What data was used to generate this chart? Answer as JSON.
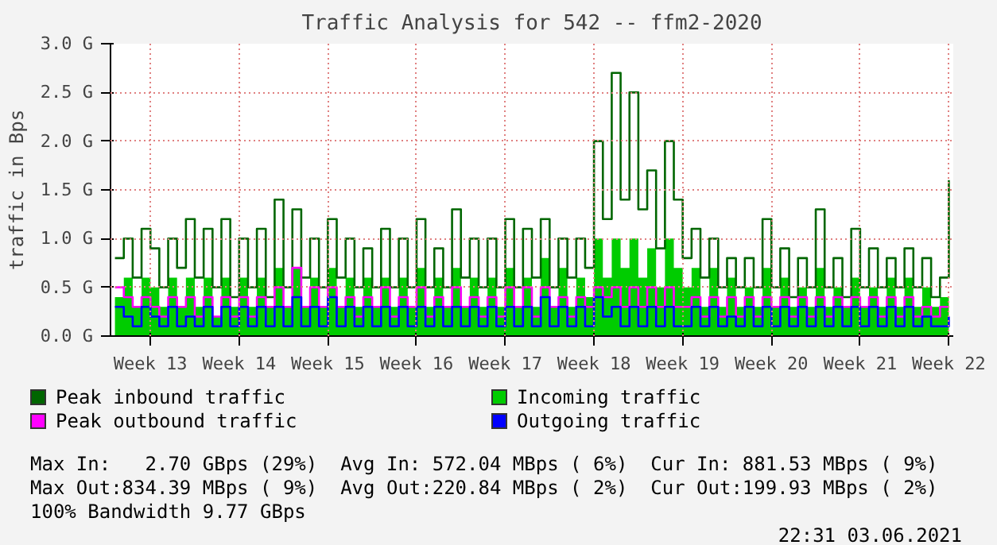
{
  "chart_data": {
    "type": "step",
    "title": "Traffic Analysis for 542 -- ffm2-2020",
    "ylabel": "traffic in Bps",
    "categories": [
      null,
      null,
      null,
      null,
      "Week 13",
      null,
      null,
      null,
      null,
      null,
      null,
      null,
      null,
      null,
      "Week 14",
      null,
      null,
      null,
      null,
      null,
      null,
      null,
      null,
      null,
      "Week 15",
      null,
      null,
      null,
      null,
      null,
      null,
      null,
      null,
      null,
      "Week 16",
      null,
      null,
      null,
      null,
      null,
      null,
      null,
      null,
      null,
      "Week 17",
      null,
      null,
      null,
      null,
      null,
      null,
      null,
      null,
      null,
      "Week 18",
      null,
      null,
      null,
      null,
      null,
      null,
      null,
      null,
      null,
      "Week 19",
      null,
      null,
      null,
      null,
      null,
      null,
      null,
      null,
      null,
      "Week 20",
      null,
      null,
      null,
      null,
      null,
      null,
      null,
      null,
      null,
      "Week 21",
      null,
      null,
      null,
      null,
      null,
      null,
      null,
      null,
      null,
      "Week 22"
    ],
    "series": [
      {
        "name": "Peak inbound traffic",
        "color": "#006600",
        "values": [
          0.8,
          1.0,
          0.6,
          1.1,
          0.9,
          0.5,
          1.0,
          0.7,
          1.2,
          0.6,
          1.1,
          0.5,
          1.2,
          0.4,
          1.0,
          0.5,
          1.1,
          0.4,
          1.4,
          0.5,
          1.3,
          0.6,
          1.0,
          0.5,
          1.2,
          0.6,
          1.0,
          0.5,
          0.9,
          0.5,
          1.1,
          0.5,
          1.0,
          0.5,
          1.2,
          0.5,
          0.9,
          0.5,
          1.3,
          0.6,
          1.0,
          0.5,
          1.0,
          0.5,
          1.2,
          0.5,
          1.1,
          0.6,
          1.2,
          0.5,
          1.0,
          0.6,
          1.0,
          0.7,
          2.0,
          1.2,
          2.7,
          1.4,
          2.5,
          1.3,
          1.7,
          0.9,
          2.0,
          1.4,
          0.8,
          1.1,
          0.6,
          1.0,
          0.5,
          0.8,
          0.5,
          0.8,
          0.5,
          1.2,
          0.5,
          0.9,
          0.4,
          0.8,
          0.5,
          1.3,
          0.5,
          0.8,
          0.4,
          1.1,
          0.5,
          0.9,
          0.5,
          0.8,
          0.5,
          0.9,
          0.5,
          0.8,
          0.4,
          0.6,
          1.6
        ]
      },
      {
        "name": "Incoming traffic",
        "type": "area",
        "color": "#00cc00",
        "values": [
          0.4,
          0.6,
          0.3,
          0.6,
          0.5,
          0.3,
          0.6,
          0.3,
          0.6,
          0.3,
          0.6,
          0.2,
          0.6,
          0.3,
          0.6,
          0.3,
          0.6,
          0.3,
          0.7,
          0.3,
          0.7,
          0.3,
          0.6,
          0.3,
          0.7,
          0.3,
          0.6,
          0.3,
          0.6,
          0.3,
          0.6,
          0.3,
          0.6,
          0.3,
          0.7,
          0.3,
          0.6,
          0.3,
          0.7,
          0.3,
          0.6,
          0.3,
          0.6,
          0.3,
          0.7,
          0.3,
          0.6,
          0.3,
          0.8,
          0.3,
          0.7,
          0.3,
          0.6,
          0.4,
          1.0,
          0.6,
          1.0,
          0.7,
          1.0,
          0.6,
          0.9,
          0.5,
          1.0,
          0.7,
          0.5,
          0.7,
          0.3,
          0.7,
          0.3,
          0.6,
          0.3,
          0.5,
          0.3,
          0.7,
          0.3,
          0.6,
          0.3,
          0.5,
          0.3,
          0.7,
          0.3,
          0.5,
          0.3,
          0.6,
          0.3,
          0.5,
          0.3,
          0.6,
          0.3,
          0.6,
          0.3,
          0.5,
          0.3,
          0.4,
          0.6
        ]
      },
      {
        "name": "Peak outbound traffic",
        "color": "#ff00ff",
        "values": [
          0.5,
          0.4,
          0.3,
          0.4,
          0.3,
          0.2,
          0.4,
          0.3,
          0.4,
          0.2,
          0.4,
          0.2,
          0.4,
          0.2,
          0.4,
          0.2,
          0.4,
          0.3,
          0.5,
          0.3,
          0.7,
          0.3,
          0.5,
          0.3,
          0.5,
          0.3,
          0.4,
          0.2,
          0.4,
          0.3,
          0.5,
          0.2,
          0.4,
          0.3,
          0.5,
          0.2,
          0.4,
          0.3,
          0.5,
          0.3,
          0.4,
          0.2,
          0.4,
          0.2,
          0.5,
          0.3,
          0.5,
          0.2,
          0.5,
          0.3,
          0.4,
          0.2,
          0.4,
          0.3,
          0.5,
          0.4,
          0.5,
          0.3,
          0.5,
          0.3,
          0.5,
          0.3,
          0.5,
          0.3,
          0.3,
          0.4,
          0.2,
          0.4,
          0.2,
          0.4,
          0.2,
          0.4,
          0.2,
          0.4,
          0.3,
          0.4,
          0.2,
          0.4,
          0.2,
          0.4,
          0.2,
          0.4,
          0.3,
          0.4,
          0.3,
          0.4,
          0.2,
          0.4,
          0.2,
          0.4,
          0.2,
          0.3,
          0.2,
          0.3,
          0.3
        ]
      },
      {
        "name": "Outgoing traffic",
        "color": "#0000ff",
        "values": [
          0.3,
          0.2,
          0.1,
          0.3,
          0.2,
          0.1,
          0.3,
          0.1,
          0.2,
          0.1,
          0.3,
          0.1,
          0.3,
          0.1,
          0.3,
          0.1,
          0.3,
          0.1,
          0.3,
          0.1,
          0.4,
          0.1,
          0.3,
          0.1,
          0.4,
          0.1,
          0.3,
          0.1,
          0.3,
          0.1,
          0.3,
          0.1,
          0.3,
          0.1,
          0.3,
          0.1,
          0.3,
          0.1,
          0.3,
          0.1,
          0.3,
          0.1,
          0.3,
          0.1,
          0.3,
          0.1,
          0.3,
          0.1,
          0.4,
          0.1,
          0.3,
          0.1,
          0.3,
          0.1,
          0.4,
          0.2,
          0.3,
          0.1,
          0.3,
          0.1,
          0.3,
          0.1,
          0.3,
          0.1,
          0.1,
          0.3,
          0.1,
          0.3,
          0.1,
          0.2,
          0.1,
          0.3,
          0.1,
          0.3,
          0.1,
          0.3,
          0.1,
          0.3,
          0.1,
          0.3,
          0.1,
          0.3,
          0.1,
          0.3,
          0.1,
          0.3,
          0.1,
          0.3,
          0.1,
          0.3,
          0.1,
          0.2,
          0.1,
          0.1,
          0.2
        ]
      }
    ],
    "ylim": [
      0,
      3.0
    ],
    "yticks": [
      {
        "value": 0,
        "label": "0.0 G"
      },
      {
        "value": 0.5,
        "label": "0.5 G"
      },
      {
        "value": 1.0,
        "label": "1.0 G"
      },
      {
        "value": 1.5,
        "label": "1.5 G"
      },
      {
        "value": 2.0,
        "label": "2.0 G"
      },
      {
        "value": 2.5,
        "label": "2.5 G"
      },
      {
        "value": 3.0,
        "label": "3.0 G"
      }
    ],
    "grid": true,
    "legend": "bottom",
    "annotations": [
      "Max In:   2.70 GBps (29%)  Avg In: 572.04 MBps ( 6%)  Cur In: 881.53 MBps ( 9%)",
      "Max Out:834.39 MBps ( 9%)  Avg Out:220.84 MBps ( 2%)  Cur Out:199.93 MBps ( 2%)",
      "100% Bandwidth 9.77 GBps",
      "22:31 03.06.2021"
    ]
  }
}
